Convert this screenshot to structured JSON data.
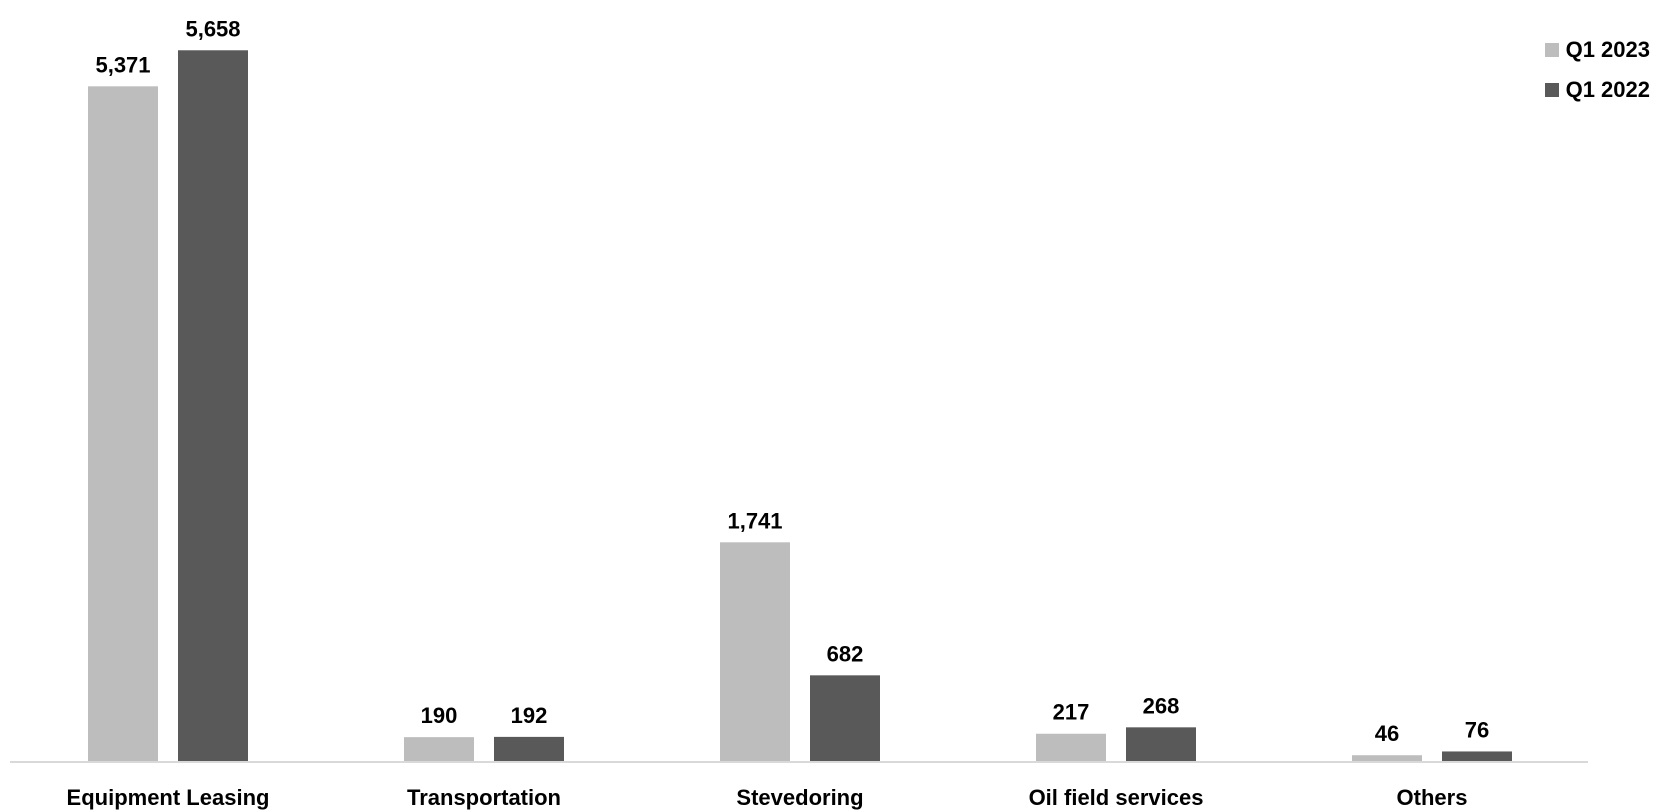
{
  "chart_data": {
    "type": "bar",
    "title": "",
    "xlabel": "",
    "ylabel": "",
    "categories": [
      "Equipment Leasing",
      "Transportation",
      "Stevedoring",
      "Oil field services",
      "Others"
    ],
    "series": [
      {
        "name": "Q1 2023",
        "color": "#bdbdbd",
        "values": [
          5371,
          190,
          1741,
          217,
          46
        ],
        "labels": [
          "5,371",
          "190",
          "1,741",
          "217",
          "46"
        ]
      },
      {
        "name": "Q1 2022",
        "color": "#595959",
        "values": [
          5658,
          192,
          682,
          268,
          76
        ],
        "labels": [
          "5,658",
          "192",
          "682",
          "268",
          "76"
        ]
      }
    ],
    "ylim": [
      0,
      5700
    ],
    "grid": false,
    "legend_position": "top-right"
  }
}
